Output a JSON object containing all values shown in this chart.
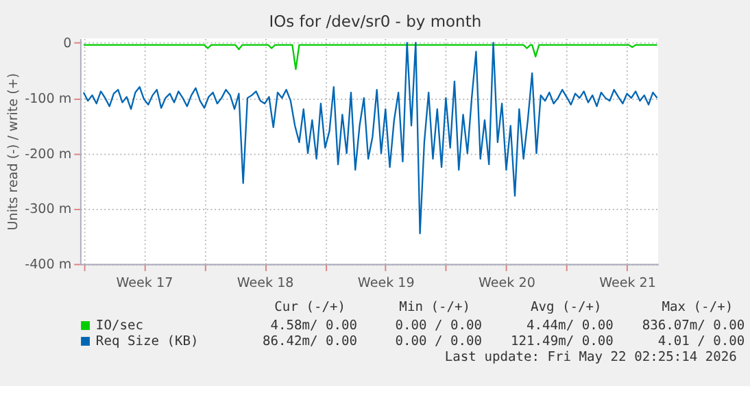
{
  "chart_data": {
    "type": "line",
    "title": "IOs for /dev/sr0 - by month",
    "ylabel": "Units read (-) / write (+)",
    "xlim": [
      "2026-04-19T19:12",
      "2026-05-23T07:12"
    ],
    "ylim": [
      -400,
      8
    ],
    "xticks": [
      {
        "value": "2026-04-20T00:00",
        "label": null
      },
      {
        "value": "2026-04-23T12:00",
        "label": "Week 17"
      },
      {
        "value": "2026-04-27T00:00",
        "label": null
      },
      {
        "value": "2026-04-30T12:00",
        "label": "Week 18"
      },
      {
        "value": "2026-05-04T00:00",
        "label": null
      },
      {
        "value": "2026-05-07T12:00",
        "label": "Week 19"
      },
      {
        "value": "2026-05-11T00:00",
        "label": null
      },
      {
        "value": "2026-05-14T12:00",
        "label": "Week 20"
      },
      {
        "value": "2026-05-18T00:00",
        "label": null
      },
      {
        "value": "2026-05-21T12:00",
        "label": "Week 21"
      }
    ],
    "yticks": [
      0,
      {
        "value": -100,
        "label": "-100 m"
      },
      {
        "value": -200,
        "label": "-200 m"
      },
      {
        "value": -300,
        "label": "-300 m"
      },
      {
        "value": -400,
        "label": "-400 m"
      }
    ],
    "grid": true,
    "legend": "bottom",
    "marker": "none",
    "line_style": "solid",
    "series": [
      {
        "name": "IO/sec",
        "color": "#00cc00",
        "x": [
          "2026-04-20T00:00",
          "2026-04-27T00:00",
          "2026-04-27T04:48",
          "2026-04-27T09:36",
          "2026-04-28T19:12",
          "2026-04-29T00:00",
          "2026-04-29T04:48",
          "2026-04-30T16:48",
          "2026-04-30T21:36",
          "2026-05-01T02:24",
          "2026-05-02T02:24",
          "2026-05-02T07:12",
          "2026-05-02T12:00",
          "2026-05-15T12:00",
          "2026-05-15T16:48",
          "2026-05-15T21:36",
          "2026-05-16T00:00",
          "2026-05-16T04:48",
          "2026-05-16T09:36",
          "2026-05-21T14:24",
          "2026-05-21T19:12",
          "2026-05-22T00:00",
          "2026-05-23T06:00"
        ],
        "values": [
          -4,
          -4,
          -10,
          -4,
          -4,
          -12,
          -4,
          -4,
          -10,
          -4,
          -4,
          -48,
          -4,
          -4,
          -10,
          -4,
          -4,
          -25,
          -4,
          -4,
          -8,
          -4,
          -4
        ]
      },
      {
        "name": "Req Size (KB)",
        "color": "#0066b3",
        "x": [
          "2026-04-20T00:00",
          "2026-04-20T06:00",
          "2026-04-20T12:00",
          "2026-04-20T18:00",
          "2026-04-21T00:00",
          "2026-04-21T06:00",
          "2026-04-21T12:00",
          "2026-04-21T18:00",
          "2026-04-22T00:00",
          "2026-04-22T06:00",
          "2026-04-22T12:00",
          "2026-04-22T18:00",
          "2026-04-23T00:00",
          "2026-04-23T06:00",
          "2026-04-23T12:00",
          "2026-04-23T18:00",
          "2026-04-24T00:00",
          "2026-04-24T06:00",
          "2026-04-24T12:00",
          "2026-04-24T18:00",
          "2026-04-25T00:00",
          "2026-04-25T06:00",
          "2026-04-25T12:00",
          "2026-04-25T18:00",
          "2026-04-26T00:00",
          "2026-04-26T06:00",
          "2026-04-26T12:00",
          "2026-04-26T18:00",
          "2026-04-27T00:00",
          "2026-04-27T06:00",
          "2026-04-27T12:00",
          "2026-04-27T18:00",
          "2026-04-28T00:00",
          "2026-04-28T06:00",
          "2026-04-28T12:00",
          "2026-04-28T18:00",
          "2026-04-29T00:00",
          "2026-04-29T06:00",
          "2026-04-29T12:00",
          "2026-04-29T18:00",
          "2026-04-30T00:00",
          "2026-04-30T06:00",
          "2026-04-30T12:00",
          "2026-04-30T18:00",
          "2026-05-01T00:00",
          "2026-05-01T06:00",
          "2026-05-01T12:00",
          "2026-05-01T18:00",
          "2026-05-02T00:00",
          "2026-05-02T06:00",
          "2026-05-02T12:00",
          "2026-05-02T18:00",
          "2026-05-03T00:00",
          "2026-05-03T06:00",
          "2026-05-03T12:00",
          "2026-05-03T18:00",
          "2026-05-04T00:00",
          "2026-05-04T06:00",
          "2026-05-04T12:00",
          "2026-05-04T18:00",
          "2026-05-05T00:00",
          "2026-05-05T06:00",
          "2026-05-05T12:00",
          "2026-05-05T18:00",
          "2026-05-06T00:00",
          "2026-05-06T06:00",
          "2026-05-06T12:00",
          "2026-05-06T18:00",
          "2026-05-07T00:00",
          "2026-05-07T06:00",
          "2026-05-07T12:00",
          "2026-05-07T18:00",
          "2026-05-08T00:00",
          "2026-05-08T06:00",
          "2026-05-08T12:00",
          "2026-05-08T18:00",
          "2026-05-09T00:00",
          "2026-05-09T06:00",
          "2026-05-09T12:00",
          "2026-05-09T18:00",
          "2026-05-10T00:00",
          "2026-05-10T06:00",
          "2026-05-10T12:00",
          "2026-05-10T18:00",
          "2026-05-11T00:00",
          "2026-05-11T06:00",
          "2026-05-11T12:00",
          "2026-05-11T18:00",
          "2026-05-12T00:00",
          "2026-05-12T06:00",
          "2026-05-12T12:00",
          "2026-05-12T18:00",
          "2026-05-13T00:00",
          "2026-05-13T06:00",
          "2026-05-13T12:00",
          "2026-05-13T18:00",
          "2026-05-14T00:00",
          "2026-05-14T06:00",
          "2026-05-14T12:00",
          "2026-05-14T18:00",
          "2026-05-15T00:00",
          "2026-05-15T06:00",
          "2026-05-15T12:00",
          "2026-05-15T18:00",
          "2026-05-16T00:00",
          "2026-05-16T06:00",
          "2026-05-16T12:00",
          "2026-05-16T18:00",
          "2026-05-17T00:00",
          "2026-05-17T06:00",
          "2026-05-17T12:00",
          "2026-05-17T18:00",
          "2026-05-18T00:00",
          "2026-05-18T06:00",
          "2026-05-18T12:00",
          "2026-05-18T18:00",
          "2026-05-19T00:00",
          "2026-05-19T06:00",
          "2026-05-19T12:00",
          "2026-05-19T18:00",
          "2026-05-20T00:00",
          "2026-05-20T06:00",
          "2026-05-20T12:00",
          "2026-05-20T18:00",
          "2026-05-21T00:00",
          "2026-05-21T06:00",
          "2026-05-21T12:00",
          "2026-05-21T18:00",
          "2026-05-22T00:00",
          "2026-05-22T06:00",
          "2026-05-22T12:00",
          "2026-05-22T18:00",
          "2026-05-23T00:00",
          "2026-05-23T06:00"
        ],
        "values": [
          -90,
          -105,
          -95,
          -110,
          -88,
          -100,
          -115,
          -92,
          -85,
          -108,
          -98,
          -120,
          -90,
          -80,
          -102,
          -112,
          -95,
          -85,
          -118,
          -100,
          -92,
          -108,
          -88,
          -100,
          -115,
          -95,
          -82,
          -105,
          -118,
          -98,
          -90,
          -110,
          -100,
          -85,
          -95,
          -120,
          -92,
          -254,
          -100,
          -95,
          -88,
          -105,
          -110,
          -98,
          -153,
          -90,
          -100,
          -85,
          -105,
          -150,
          -180,
          -120,
          -200,
          -140,
          -210,
          -110,
          -190,
          -160,
          -80,
          -220,
          -130,
          -200,
          -90,
          -230,
          -150,
          -100,
          -210,
          -170,
          -85,
          -200,
          -120,
          -225,
          -140,
          -90,
          -215,
          0,
          -150,
          0,
          -345,
          -180,
          -90,
          -210,
          -120,
          -225,
          -100,
          -190,
          -70,
          -230,
          -130,
          -200,
          -100,
          -16,
          -210,
          -140,
          -220,
          0,
          -180,
          -110,
          -230,
          -150,
          -277,
          -120,
          -210,
          -140,
          -55,
          -200,
          -95,
          -105,
          -90,
          -110,
          -100,
          -85,
          -98,
          -112,
          -92,
          -100,
          -88,
          -108,
          -95,
          -115,
          -90,
          -100,
          -105,
          -85,
          -98,
          -110,
          -92,
          -100,
          -88,
          -105,
          -95,
          -112,
          -90,
          -100
        ]
      }
    ],
    "annotations": [
      "Cur (-/+)",
      "Min (-/+)",
      "Avg (-/+)",
      "Max (-/+)",
      "4.58m/  0.00",
      "0.00 /  0.00",
      "4.44m/  0.00",
      "836.07m/  0.00",
      "86.42m/  0.00",
      "0.00 /  0.00",
      "121.49m/  0.00",
      "4.01 /  0.00",
      "Last update: Fri May 22 02:25:14 2026"
    ]
  }
}
